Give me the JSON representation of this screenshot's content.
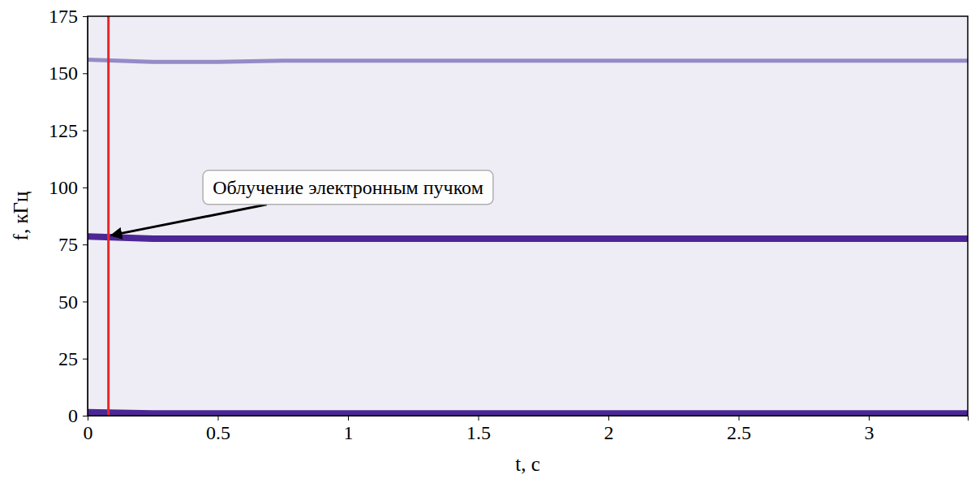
{
  "chart_data": {
    "type": "line",
    "x_label": "t, с",
    "y_label": "f, кГц",
    "xlim": [
      0,
      3.38
    ],
    "ylim": [
      0,
      175
    ],
    "xticks": [
      0,
      0.5,
      1,
      1.5,
      2,
      2.5,
      3
    ],
    "yticks": [
      0,
      25,
      50,
      75,
      100,
      125,
      150,
      175
    ],
    "grid": false,
    "x": [
      0,
      0.25,
      0.5,
      0.75,
      1,
      1.25,
      1.5,
      1.75,
      2,
      2.25,
      2.5,
      2.75,
      3,
      3.25,
      3.38
    ],
    "series": [
      {
        "color": "#8a7fc2",
        "values": [
          156,
          155,
          155,
          155.5,
          155.5,
          155.5,
          155.5,
          155.5,
          155.5,
          155.5,
          155.5,
          155.5,
          155.5,
          155.5,
          155.5
        ]
      },
      {
        "color": "#3b0f8c",
        "values": [
          78.5,
          77.5,
          77.5,
          77.5,
          77.5,
          77.5,
          77.5,
          77.5,
          77.5,
          77.5,
          77.5,
          77.5,
          77.5,
          77.5,
          77.5
        ]
      },
      {
        "color": "#3b0f8c",
        "values": [
          1.5,
          1,
          1,
          1,
          1,
          1,
          1,
          1,
          1,
          1,
          1,
          1,
          1,
          1,
          1
        ]
      }
    ],
    "vlines": [
      {
        "x": 0.08,
        "color": "#e8262a"
      }
    ],
    "annotations": [
      {
        "text": "Облучение электронным пучком",
        "x": 0.09,
        "y": 79,
        "text_x": 1.0,
        "text_y": 100
      }
    ]
  }
}
